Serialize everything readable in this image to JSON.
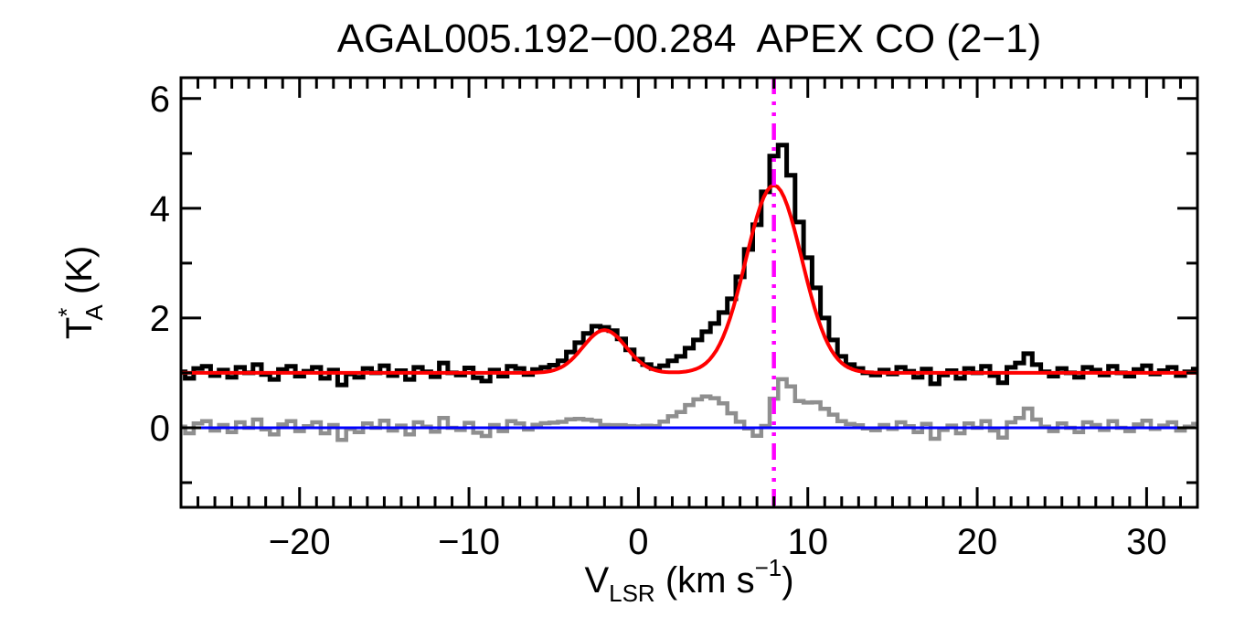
{
  "title": "AGAL005.192−00.284  APEX CO (2−1)",
  "axes": {
    "x": {
      "label_main": "V",
      "label_sub": "LSR",
      "label_unit": " (km s",
      "label_exponent": "−1",
      "label_close": ")",
      "range": [
        -27,
        33
      ],
      "major_ticks": [
        -20,
        -10,
        0,
        10,
        20,
        30
      ],
      "major_tick_labels": [
        "−20",
        "−10",
        "0",
        "10",
        "20",
        "30"
      ],
      "minor_tick_step": 1
    },
    "y": {
      "label_main": "T",
      "label_sup": "*",
      "label_sub": "A",
      "label_unit": " (K)",
      "range": [
        -1.45,
        6.38
      ],
      "major_ticks": [
        0,
        2,
        4,
        6
      ],
      "major_tick_labels": [
        "0",
        "2",
        "4",
        "6"
      ],
      "minor_ticks": [
        -1,
        1,
        3,
        5
      ]
    }
  },
  "colors": {
    "spectrum": "#000000",
    "fit": "#ff0000",
    "residual": "#8f8f8f",
    "zero_line": "#0000ff",
    "velocity_marker": "#ff00ff",
    "frame": "#000000",
    "background": "#ffffff"
  },
  "chart_data": {
    "type": "line",
    "title": "AGAL005.192−00.284  APEX CO (2−1)",
    "xlabel": "V_LSR (km s^-1)",
    "ylabel": "T_A^* (K)",
    "xlim": [
      -27,
      33
    ],
    "ylim": [
      -1.45,
      6.38
    ],
    "grid": false,
    "legend": "none",
    "channel_width_kms": 0.5,
    "series": [
      {
        "name": "observed-spectrum",
        "style": "histogram-steps",
        "color": "#000000",
        "v_start": -27.0,
        "v_step": 0.5,
        "values": [
          1.02,
          0.9,
          1.08,
          1.12,
          0.95,
          1.05,
          0.92,
          1.1,
          1.0,
          1.15,
          0.97,
          0.88,
          1.06,
          1.12,
          0.94,
          1.03,
          1.1,
          0.9,
          1.05,
          0.78,
          0.98,
          0.92,
          1.08,
          1.0,
          1.13,
          0.95,
          1.04,
          0.88,
          1.1,
          1.02,
          0.93,
          1.18,
          1.0,
          0.96,
          1.09,
          0.91,
          0.85,
          1.05,
          0.94,
          1.12,
          1.08,
          0.97,
          1.06,
          1.1,
          1.14,
          1.22,
          1.38,
          1.55,
          1.72,
          1.85,
          1.83,
          1.77,
          1.62,
          1.42,
          1.25,
          1.15,
          1.08,
          1.13,
          1.22,
          1.3,
          1.45,
          1.6,
          1.75,
          1.9,
          2.1,
          2.35,
          2.75,
          3.25,
          3.7,
          4.3,
          4.95,
          5.15,
          4.6,
          3.75,
          3.1,
          2.55,
          2.0,
          1.6,
          1.3,
          1.15,
          1.08,
          1.0,
          0.96,
          1.05,
          0.98,
          1.1,
          1.03,
          0.92,
          1.07,
          0.8,
          0.96,
          1.04,
          0.9,
          1.08,
          1.0,
          1.12,
          0.95,
          0.82,
          1.1,
          1.18,
          1.35,
          1.15,
          1.02,
          0.94,
          1.08,
          1.0,
          0.92,
          1.1,
          1.05,
          0.96,
          1.12,
          1.0,
          0.94,
          1.06,
          1.13,
          0.98,
          1.04,
          1.1,
          0.95,
          1.02,
          1.07
        ]
      },
      {
        "name": "gaussian-fit",
        "style": "smooth-curve",
        "color": "#ff0000",
        "model": {
          "baseline_K": 1.0,
          "components": [
            {
              "amplitude_K": 0.78,
              "center_kms": -2.0,
              "sigma_kms": 1.27
            },
            {
              "amplitude_K": 3.42,
              "center_kms": 8.0,
              "sigma_kms": 1.65
            }
          ]
        }
      },
      {
        "name": "fit-residual",
        "style": "histogram-steps",
        "color": "#8f8f8f",
        "derivation": "observed-spectrum minus gaussian-fit"
      },
      {
        "name": "zero-baseline",
        "style": "horizontal-line",
        "color": "#0000ff",
        "y_K": 0
      },
      {
        "name": "vlsr-marker",
        "style": "vertical-dashdot-line",
        "color": "#ff00ff",
        "x_kms": 8.0
      }
    ]
  }
}
